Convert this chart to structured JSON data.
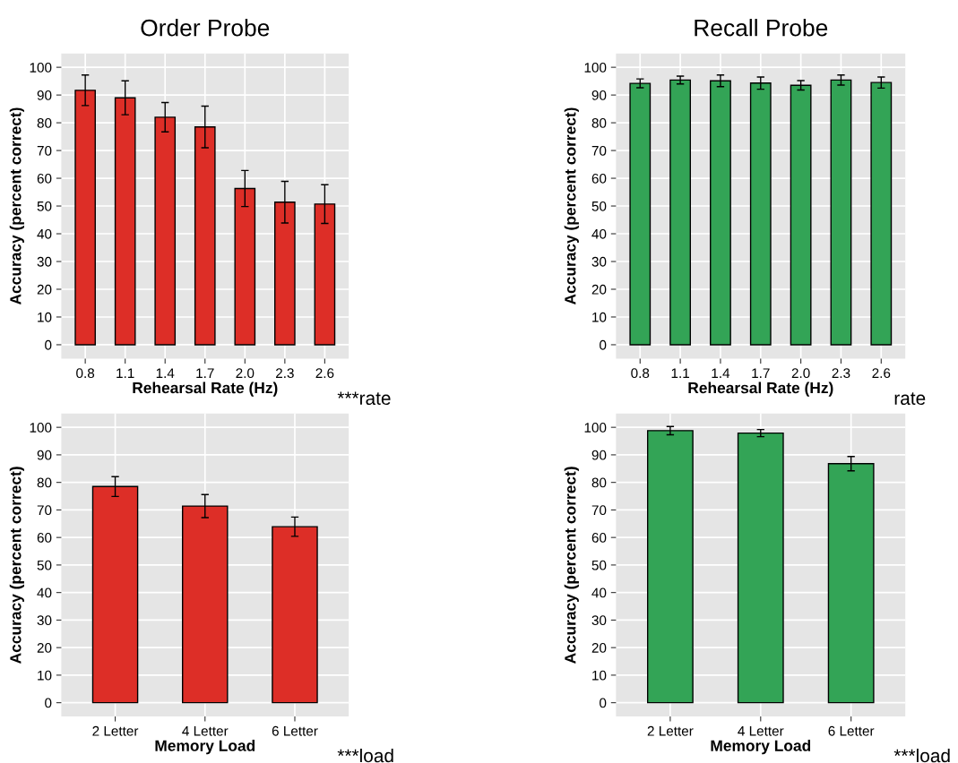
{
  "chart_data": [
    {
      "type": "bar",
      "title": "Order Probe",
      "xlabel": "Rehearsal Rate (Hz)",
      "ylabel": "Accuracy (percent correct)",
      "categories": [
        "0.8",
        "1.1",
        "1.4",
        "1.7",
        "2.0",
        "2.3",
        "2.6"
      ],
      "values": [
        91.7,
        89.0,
        82.0,
        78.5,
        56.3,
        51.4,
        50.7
      ],
      "errors": [
        5.5,
        6.1,
        5.3,
        7.5,
        6.5,
        7.5,
        7.0
      ],
      "color": "#dd2e27",
      "ylim": [
        -5,
        105
      ],
      "yticks": [
        0,
        10,
        20,
        30,
        40,
        50,
        60,
        70,
        80,
        90,
        100
      ],
      "grid": true,
      "annotations": [
        "***rate"
      ]
    },
    {
      "type": "bar",
      "title": "Recall Probe",
      "xlabel": "Rehearsal Rate (Hz)",
      "ylabel": "Accuracy (percent correct)",
      "categories": [
        "0.8",
        "1.1",
        "1.4",
        "1.7",
        "2.0",
        "2.3",
        "2.6"
      ],
      "values": [
        94.2,
        95.4,
        95.1,
        94.3,
        93.5,
        95.4,
        94.5
      ],
      "errors": [
        1.6,
        1.4,
        2.1,
        2.2,
        1.7,
        1.8,
        2.0
      ],
      "color": "#33a456",
      "ylim": [
        -5,
        105
      ],
      "yticks": [
        0,
        10,
        20,
        30,
        40,
        50,
        60,
        70,
        80,
        90,
        100
      ],
      "grid": true,
      "annotations": [
        "rate"
      ]
    },
    {
      "type": "bar",
      "xlabel": "Memory Load",
      "ylabel": "Accuracy (percent correct)",
      "categories": [
        "2 Letter",
        "4 Letter",
        "6 Letter"
      ],
      "values": [
        78.5,
        71.4,
        63.9
      ],
      "errors": [
        3.6,
        4.2,
        3.5
      ],
      "color": "#dd2e27",
      "ylim": [
        -5,
        105
      ],
      "yticks": [
        0,
        10,
        20,
        30,
        40,
        50,
        60,
        70,
        80,
        90,
        100
      ],
      "grid": true,
      "annotations": [
        "***load"
      ]
    },
    {
      "type": "bar",
      "xlabel": "Memory Load",
      "ylabel": "Accuracy (percent correct)",
      "categories": [
        "2 Letter",
        "4 Letter",
        "6 Letter"
      ],
      "values": [
        98.8,
        97.9,
        86.8
      ],
      "errors": [
        1.5,
        1.3,
        2.6
      ],
      "color": "#33a456",
      "ylim": [
        -5,
        105
      ],
      "yticks": [
        0,
        10,
        20,
        30,
        40,
        50,
        60,
        70,
        80,
        90,
        100
      ],
      "grid": true,
      "annotations": [
        "***load"
      ]
    }
  ]
}
